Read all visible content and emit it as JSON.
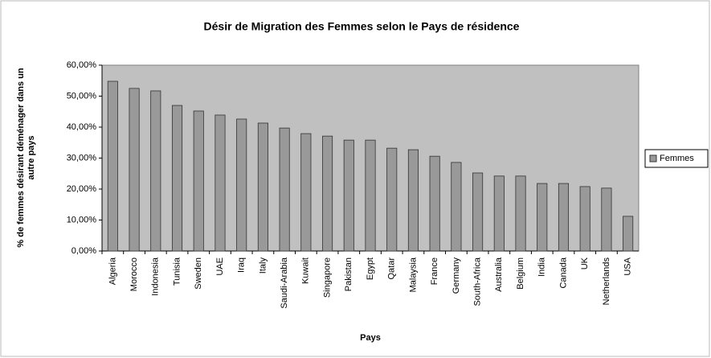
{
  "chart_data": {
    "type": "bar",
    "title": "Désir de Migration des Femmes selon le Pays de résidence",
    "x_label": "Pays",
    "y_label": "% de femmes désirant déménager dans un autre pays",
    "categories": [
      "Algeria",
      "Morocco",
      "Indonesia",
      "Tunisia",
      "Sweden",
      "UAE",
      "Iraq",
      "Italy",
      "Saudi-Arabia",
      "Kuwait",
      "Singapore",
      "Pakistan",
      "Egypt",
      "Qatar",
      "Malaysia",
      "France",
      "Germany",
      "South-Africa",
      "Australia",
      "Belgium",
      "India",
      "Canada",
      "UK",
      "Netherlands",
      "USA"
    ],
    "series": [
      {
        "name": "Femmes",
        "color": "#999999",
        "values": [
          54.8,
          52.5,
          51.7,
          47.0,
          45.2,
          43.9,
          42.6,
          41.3,
          39.7,
          37.9,
          37.1,
          35.8,
          35.8,
          33.2,
          32.7,
          30.6,
          28.6,
          25.2,
          24.2,
          24.2,
          21.8,
          21.8,
          20.8,
          20.3,
          11.2
        ]
      }
    ],
    "ylim": [
      0,
      60
    ],
    "yticks": [
      {
        "value": 0,
        "label": "0,00%"
      },
      {
        "value": 10,
        "label": "10,00%"
      },
      {
        "value": 20,
        "label": "20,00%"
      },
      {
        "value": 30,
        "label": "30,00%"
      },
      {
        "value": 40,
        "label": "40,00%"
      },
      {
        "value": 50,
        "label": "50,00%"
      },
      {
        "value": 60,
        "label": "60,00%"
      }
    ],
    "legend": "right",
    "plot_background": "#c0c0c0"
  }
}
